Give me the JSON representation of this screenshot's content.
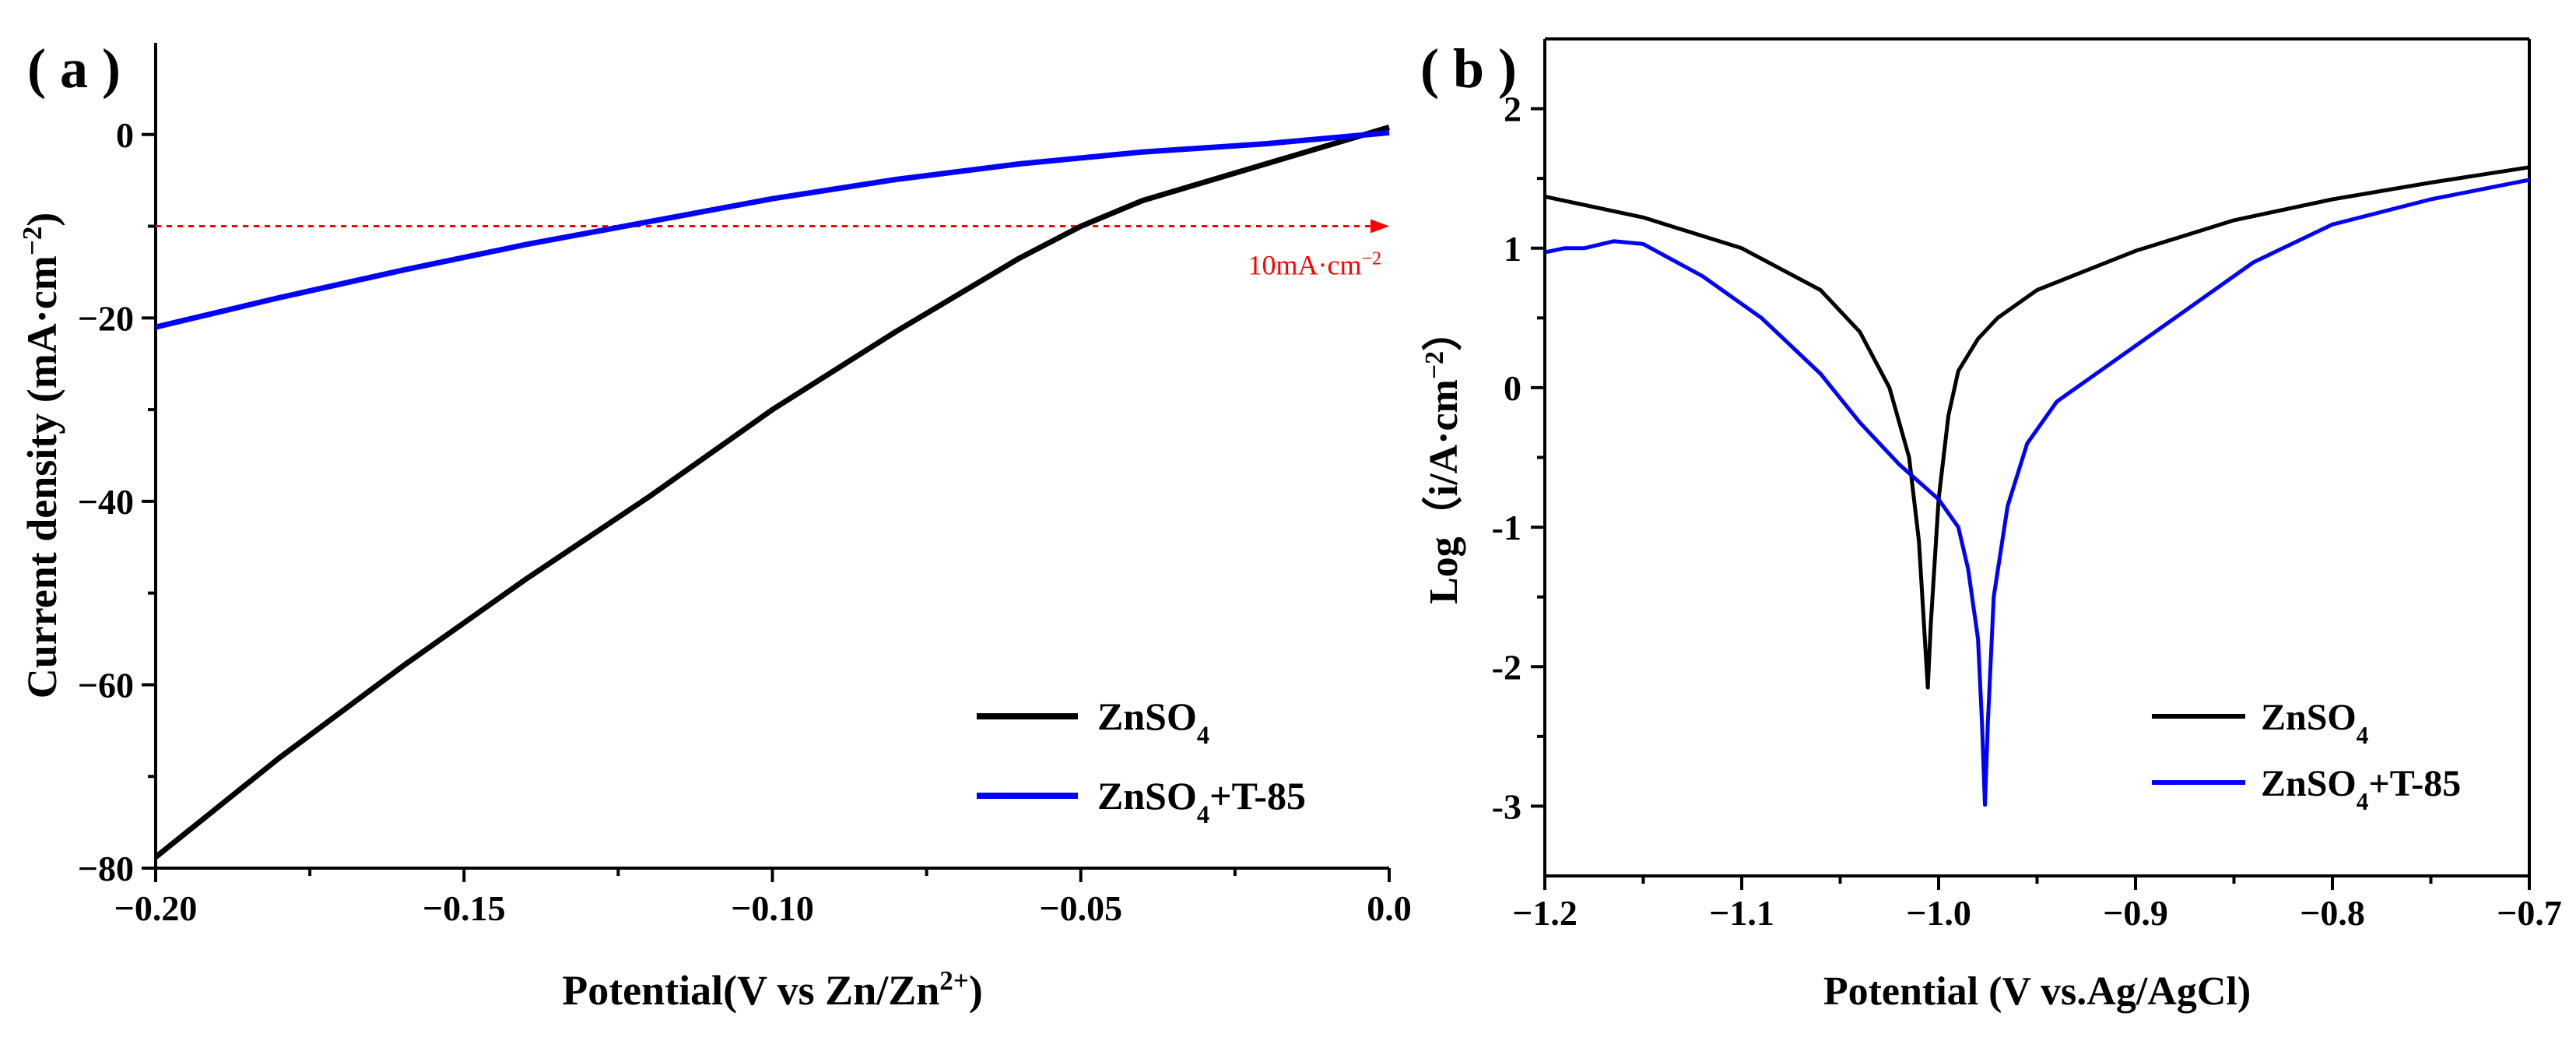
{
  "chart_data": [
    {
      "panel_label": "( a )",
      "type": "line",
      "title": "",
      "xlabel": "Potential(V vs Zn/Zn",
      "xlabel_sup": "2+",
      "xlabel_end": ")",
      "ylabel": "Current density (mA·cm",
      "ylabel_sup": "−2",
      "ylabel_end": ")",
      "xlim": [
        -0.2,
        0.0
      ],
      "ylim": [
        -80,
        10
      ],
      "xticks": [
        -0.2,
        -0.15,
        -0.1,
        -0.05,
        0.0
      ],
      "xtick_labels": [
        "−0.20",
        "−0.15",
        "−0.10",
        "−0.05",
        "0.0"
      ],
      "xticks_minor": [
        -0.175,
        -0.125,
        -0.075,
        -0.025
      ],
      "yticks": [
        0,
        -20,
        -40,
        -60,
        -80
      ],
      "ytick_labels": [
        "0",
        "−20",
        "−40",
        "−60",
        "−80"
      ],
      "yticks_minor": [
        -10,
        -30,
        -50,
        -70
      ],
      "series": [
        {
          "name": "ZnSO",
          "name_sub": "4",
          "name_end": "",
          "color": "#000000",
          "x": [
            -0.2,
            -0.18,
            -0.16,
            -0.14,
            -0.12,
            -0.1,
            -0.08,
            -0.06,
            -0.05,
            -0.04,
            -0.02,
            0.0
          ],
          "y": [
            -78.8,
            -68.0,
            -58.0,
            -48.5,
            -39.5,
            -30.0,
            -21.5,
            -13.5,
            -10.0,
            -7.2,
            -3.2,
            0.8
          ]
        },
        {
          "name": "ZnSO",
          "name_sub": "4",
          "name_end": "+T-85",
          "color": "#0000ff",
          "x": [
            -0.2,
            -0.18,
            -0.16,
            -0.14,
            -0.12,
            -0.1,
            -0.08,
            -0.06,
            -0.04,
            -0.02,
            0.0
          ],
          "y": [
            -21.0,
            -17.8,
            -14.8,
            -12.0,
            -9.5,
            -7.0,
            -4.9,
            -3.2,
            -1.9,
            -1.0,
            0.2
          ]
        }
      ],
      "annotation": {
        "text": "10mA·cm",
        "sup": "−2",
        "y_value": -10,
        "color": "#ff0000"
      },
      "legend_position": "bottom-right"
    },
    {
      "panel_label": "( b )",
      "type": "line",
      "title": "",
      "xlabel": "Potential (V vs.Ag/AgCl)",
      "ylabel": "Log（i/A·cm",
      "ylabel_sup": "−2",
      "ylabel_end": "）",
      "xlim": [
        -1.2,
        -0.7
      ],
      "ylim": [
        -3.5,
        2.5
      ],
      "xticks": [
        -1.2,
        -1.1,
        -1.0,
        -0.9,
        -0.8,
        -0.7
      ],
      "xtick_labels": [
        "−1.2",
        "−1.1",
        "−1.0",
        "−0.9",
        "−0.8",
        "−0.7"
      ],
      "xticks_minor": [
        -1.15,
        -1.05,
        -0.95,
        -0.85,
        -0.75
      ],
      "yticks": [
        2,
        1,
        0,
        -1,
        -2,
        -3
      ],
      "ytick_labels": [
        "2",
        "1",
        "0",
        "-1",
        "-2",
        "-3"
      ],
      "yticks_minor": [
        1.5,
        0.5,
        -0.5,
        -1.5,
        -2.5
      ],
      "series": [
        {
          "name": "ZnSO",
          "name_sub": "4",
          "name_end": "",
          "color": "#000000",
          "x": [
            -1.2,
            -1.15,
            -1.1,
            -1.06,
            -1.04,
            -1.025,
            -1.015,
            -1.01,
            -1.007,
            -1.0055,
            -1.004,
            -1.0,
            -0.995,
            -0.99,
            -0.98,
            -0.97,
            -0.95,
            -0.9,
            -0.85,
            -0.8,
            -0.75,
            -0.7
          ],
          "y": [
            1.37,
            1.22,
            1.0,
            0.7,
            0.4,
            0.0,
            -0.5,
            -1.1,
            -1.8,
            -2.15,
            -1.7,
            -0.8,
            -0.2,
            0.12,
            0.35,
            0.5,
            0.7,
            0.98,
            1.2,
            1.35,
            1.47,
            1.58
          ]
        },
        {
          "name": "ZnSO",
          "name_sub": "4",
          "name_end": "+T-85",
          "color": "#0000ff",
          "x": [
            -1.2,
            -1.19,
            -1.18,
            -1.165,
            -1.15,
            -1.12,
            -1.09,
            -1.06,
            -1.04,
            -1.02,
            -1.0,
            -0.99,
            -0.985,
            -0.98,
            -0.978,
            -0.9765,
            -0.975,
            -0.972,
            -0.965,
            -0.955,
            -0.94,
            -0.92,
            -0.9,
            -0.87,
            -0.84,
            -0.8,
            -0.75,
            -0.7
          ],
          "y": [
            0.97,
            1.0,
            1.0,
            1.05,
            1.03,
            0.8,
            0.5,
            0.1,
            -0.25,
            -0.55,
            -0.8,
            -1.0,
            -1.3,
            -1.8,
            -2.4,
            -2.99,
            -2.4,
            -1.5,
            -0.85,
            -0.4,
            -0.1,
            0.1,
            0.3,
            0.6,
            0.9,
            1.17,
            1.35,
            1.49
          ]
        }
      ],
      "legend_position": "bottom-right"
    }
  ]
}
